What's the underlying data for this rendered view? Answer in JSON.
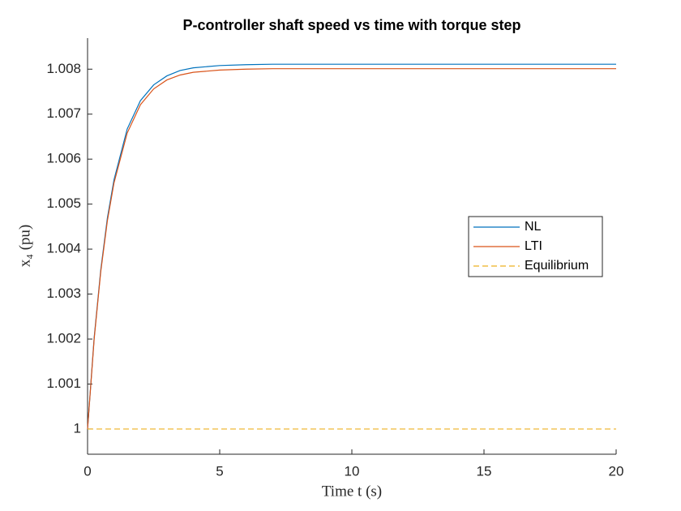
{
  "chart_data": {
    "type": "line",
    "title": "P-controller shaft speed vs time with torque step",
    "xlabel": "Time t (s)",
    "ylabel": "x₄ (pu)",
    "x": [
      0,
      0.25,
      0.5,
      0.75,
      1,
      1.5,
      2,
      2.5,
      3,
      3.5,
      4,
      5,
      6,
      7,
      8,
      10,
      12,
      15,
      20
    ],
    "series": [
      {
        "name": "NL",
        "color": "#0072bd",
        "dash": false,
        "values": [
          1,
          1.00203,
          1.00354,
          1.00469,
          1.00554,
          1.00667,
          1.0073,
          1.00765,
          1.00785,
          1.00797,
          1.00803,
          1.00808,
          1.0081,
          1.00811,
          1.00811,
          1.00811,
          1.00811,
          1.00811,
          1.00811
        ]
      },
      {
        "name": "LTI",
        "color": "#d95319",
        "dash": false,
        "values": [
          1,
          1.002,
          1.0035,
          1.00463,
          1.00547,
          1.00658,
          1.00721,
          1.00756,
          1.00776,
          1.00787,
          1.00793,
          1.00798,
          1.008,
          1.00801,
          1.00801,
          1.00801,
          1.00801,
          1.00801,
          1.00801
        ]
      },
      {
        "name": "Equilibrium",
        "color": "#edb120",
        "dash": true,
        "values": [
          1,
          1,
          1,
          1,
          1,
          1,
          1,
          1,
          1,
          1,
          1,
          1,
          1,
          1,
          1,
          1,
          1,
          1,
          1
        ]
      }
    ],
    "xlim": [
      0,
      20
    ],
    "xticks": [
      0,
      5,
      10,
      15,
      20
    ],
    "ylim": [
      0.99944,
      1.00869
    ],
    "yticks": [
      1,
      1.001,
      1.002,
      1.003,
      1.004,
      1.005,
      1.006,
      1.007,
      1.008
    ],
    "grid": false,
    "legend": "east"
  }
}
